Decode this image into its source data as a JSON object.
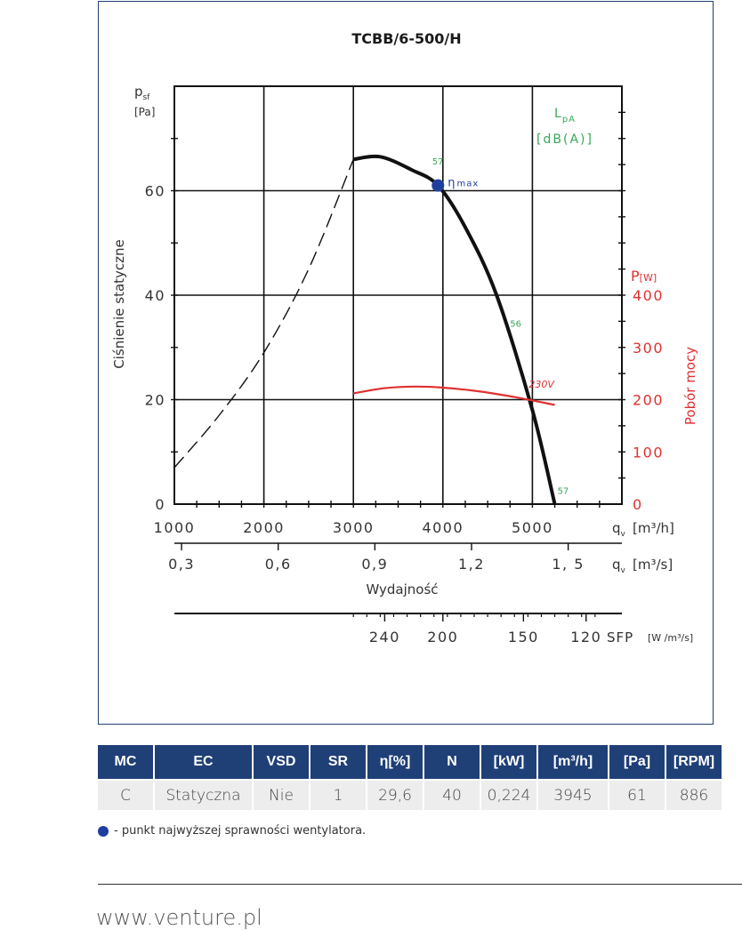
{
  "chart_data": {
    "type": "line",
    "title": "TCBB/6-500/H",
    "y_axis_symbol": "p",
    "y_axis_symbol_sub": "sf",
    "y_axis_unit": "[Pa]",
    "ylabel": "Ciśnienie statyczne",
    "y_ticks": [
      0,
      20,
      40,
      60
    ],
    "ylim": [
      0,
      80
    ],
    "x_ticks": [
      1000,
      2000,
      3000,
      4000,
      5000
    ],
    "xlim": [
      1000,
      6000
    ],
    "x_axis_symbol": "q",
    "x_axis_symbol_sub": "v",
    "x_axis_unit": "[m³/h]",
    "x2_tick_labels": [
      "0,3",
      "0,6",
      "0,9",
      "1,2",
      "1, 5"
    ],
    "x2_ticks_m3h": [
      1080,
      2160,
      3240,
      4320,
      5400
    ],
    "x2_axis_unit": "[m³/s]",
    "xlabel": "Wydajność",
    "sfp_tick_labels": [
      "240",
      "200",
      "150",
      "120"
    ],
    "sfp_ticks_m3h": [
      3350,
      4000,
      4900,
      5600
    ],
    "sfp_label": "SFP",
    "sfp_unit": "[W /m³/s]",
    "y2_axis_symbol": "P",
    "y2_axis_unit": "[W]",
    "y2label": "Pobór mocy",
    "y2_ticks": [
      0,
      100,
      200,
      300,
      400
    ],
    "y2lim": [
      0,
      800
    ],
    "lpa_label": "L",
    "lpa_sub": "pA",
    "lpa_unit": "[dB(A)]",
    "grid": true,
    "series": [
      {
        "name": "",
        "style": "dashed",
        "x": [
          1000,
          1500,
          2000,
          2500,
          3000
        ],
        "y": [
          7,
          17,
          29,
          45,
          66
        ]
      },
      {
        "name": "",
        "style": "solid",
        "x": [
          3000,
          3300,
          3650,
          3945,
          4250,
          4600,
          5000,
          5250
        ],
        "y": [
          66,
          66.5,
          64,
          61,
          53,
          40,
          18,
          0
        ]
      },
      {
        "name": "230V",
        "style": "power",
        "x": [
          3000,
          3350,
          3700,
          4000,
          4400,
          4800,
          5250
        ],
        "y": [
          212,
          222,
          225,
          223,
          216,
          205,
          190
        ]
      }
    ],
    "sound_labels": [
      {
        "text": "57",
        "x": 3880,
        "y": 65
      },
      {
        "text": "56",
        "x": 4750,
        "y": 34
      },
      {
        "text": "57",
        "x": 5280,
        "y": 2
      }
    ],
    "eta_max_point": {
      "x": 3945,
      "y": 61,
      "label": "η",
      "label_sub": "max"
    },
    "colors": {
      "fan_curve": "#111111",
      "power": "#e03030",
      "lpa": "#36a856",
      "eta_point": "#1f3f9e",
      "frame": "#1f3f77"
    }
  },
  "table": {
    "headers": [
      "MC",
      "EC",
      "VSD",
      "SR",
      "η[%]",
      "N",
      "[kW]",
      "[m³/h]",
      "[Pa]",
      "[RPM]"
    ],
    "row": [
      "C",
      "Statyczna",
      "Nie",
      "1",
      "29,6",
      "40",
      "0,224",
      "3945",
      "61",
      "886"
    ]
  },
  "legend_note": "- punkt najwyższej sprawności wentylatora.",
  "footer_url": "www.venture.pl"
}
